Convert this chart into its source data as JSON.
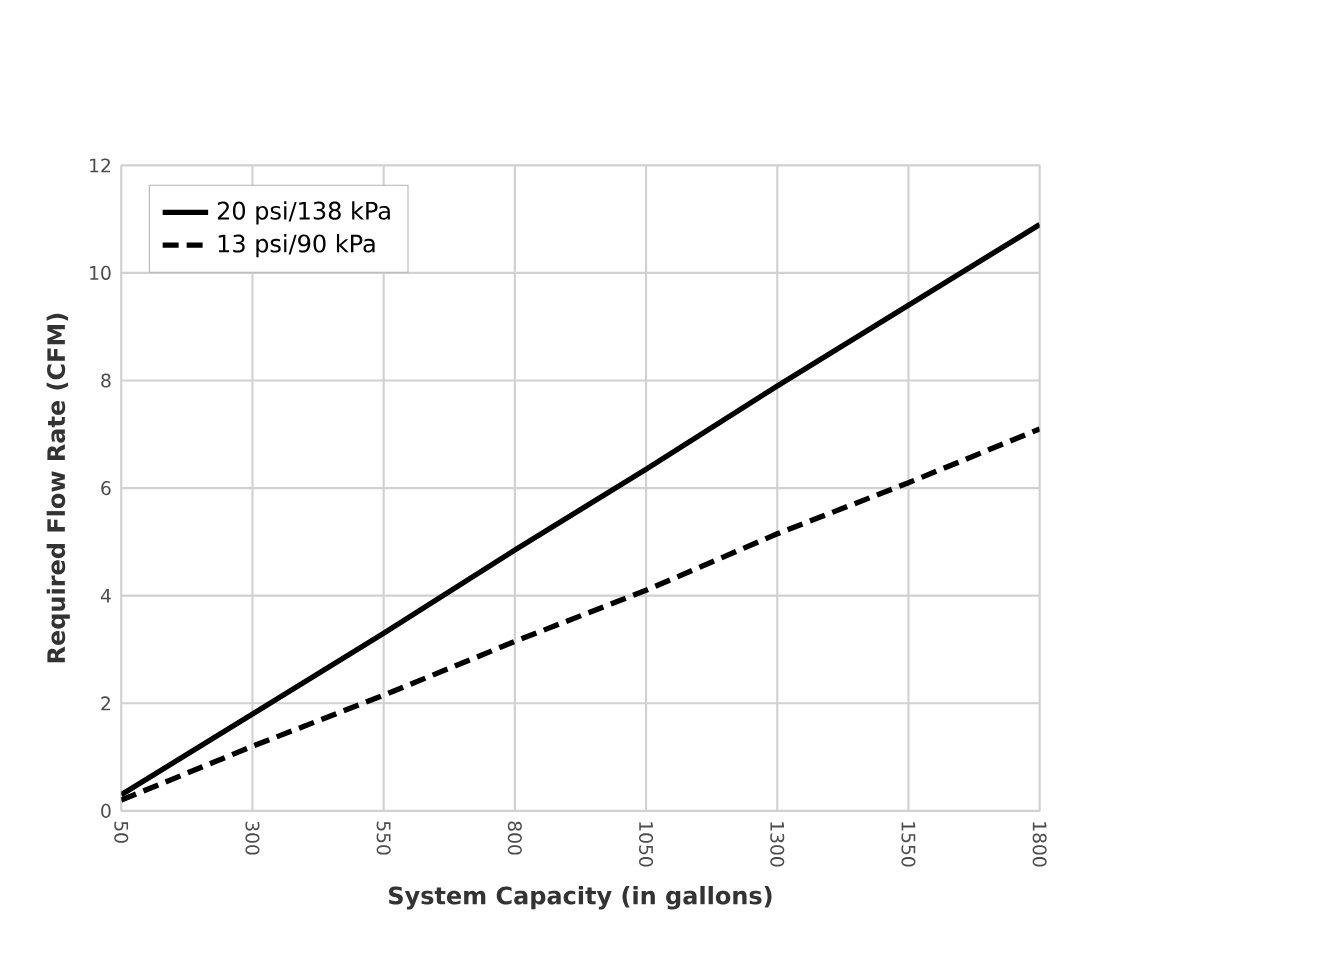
{
  "chart_data": {
    "type": "line",
    "xlabel": "System Capacity (in gallons)",
    "ylabel": "Required Flow Rate (CFM)",
    "x": [
      50,
      300,
      550,
      800,
      1050,
      1300,
      1550,
      1800
    ],
    "series": [
      {
        "name": "20 psi/138 kPa",
        "color": "#000000",
        "line_style": "solid",
        "values": [
          0.3,
          1.8,
          3.3,
          4.85,
          6.35,
          7.9,
          9.4,
          10.9
        ]
      },
      {
        "name": "13 psi/90 kPa",
        "color": "#000000",
        "line_style": "dashed",
        "values": [
          0.2,
          1.2,
          2.15,
          3.15,
          4.1,
          5.15,
          6.1,
          7.1
        ]
      }
    ],
    "xlim": [
      50,
      1800
    ],
    "ylim": [
      0,
      12
    ],
    "xticks": [
      50,
      300,
      550,
      800,
      1050,
      1300,
      1550,
      1800
    ],
    "yticks": [
      0,
      2,
      4,
      6,
      8,
      10,
      12
    ],
    "grid": true,
    "legend": "top left",
    "marker": "none"
  }
}
